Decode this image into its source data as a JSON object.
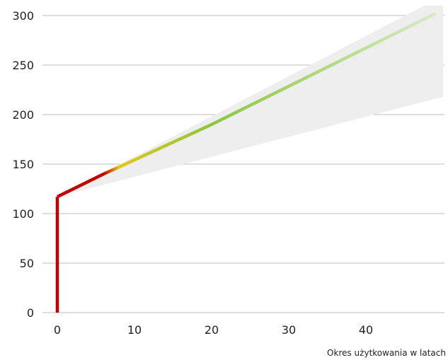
{
  "chart_data": {
    "type": "line",
    "title": "",
    "xlabel": "Okres użytkowania w latach",
    "ylabel": "",
    "xlim": [
      0,
      50
    ],
    "ylim": [
      0,
      300
    ],
    "x_ticks": [
      0,
      10,
      20,
      30,
      40
    ],
    "y_ticks": [
      0,
      50,
      100,
      150,
      200,
      250,
      300
    ],
    "grid": "horizontal",
    "series": [
      {
        "x": [
          0,
          0,
          6,
          8,
          20,
          49
        ],
        "y": [
          0,
          117,
          140,
          147,
          190,
          302
        ],
        "colors": [
          "#c00000",
          "#c00000",
          "#c00000",
          "#e6c619",
          "#8cc63f",
          "#d5ecc4"
        ]
      }
    ],
    "band": {
      "x": [
        0,
        50
      ],
      "upper": [
        117,
        320
      ],
      "lower": [
        117,
        218
      ],
      "color": "#eeeeee"
    }
  }
}
